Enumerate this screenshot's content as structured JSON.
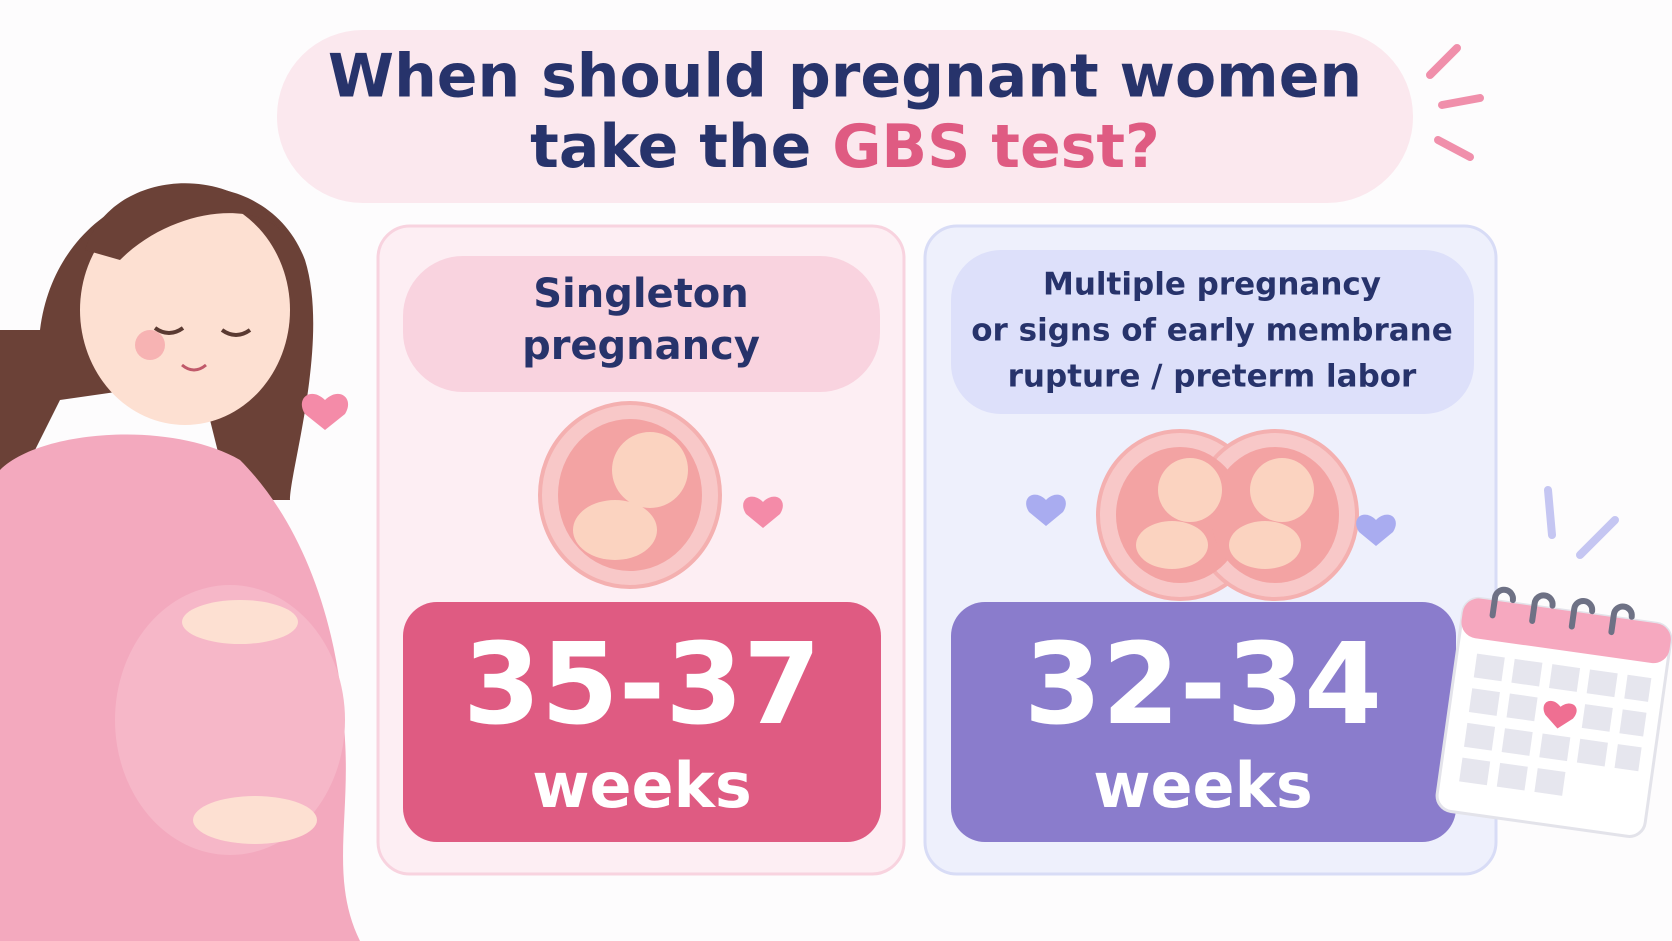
{
  "title": {
    "line1": "When should pregnant women",
    "line2": "take the",
    "highlight": "GBS test?"
  },
  "cards": [
    {
      "label_lines": [
        "Singleton",
        "pregnancy"
      ],
      "range": "35-37",
      "unit": "weeks"
    },
    {
      "label_lines": [
        "Multiple pregnancy",
        "or signs of early membrane",
        "rupture / preterm labor"
      ],
      "range": "32-34",
      "unit": "weeks"
    }
  ]
}
